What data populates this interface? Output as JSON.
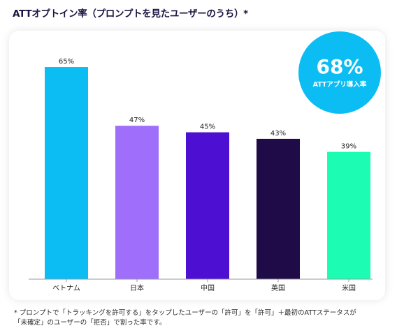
{
  "title": "ATTオプトイン率（プロンプトを見たユーザーのうち）*",
  "badge": {
    "value": "68%",
    "label": "ATTアプリ導入率",
    "color": "#0cbdf4"
  },
  "chart_data": {
    "type": "bar",
    "categories": [
      "ベトナム",
      "日本",
      "中国",
      "英国",
      "米国"
    ],
    "values": [
      65,
      47,
      45,
      43,
      39
    ],
    "value_suffix": "%",
    "colors": [
      "#0cbdf4",
      "#9f6efb",
      "#4d0fd1",
      "#1f0b48",
      "#1cfcb2"
    ],
    "ylim": [
      0,
      68
    ],
    "grid": false,
    "title": "ATTオプトイン率（プロンプトを見たユーザーのうち）*"
  },
  "footnote": {
    "line1": "* プロンプトで「トラッキングを許可する」をタップしたユーザーの「許可」を「許可」＋最初のATTステータスが",
    "line2": "「未確定」のユーザーの「拒否」で割った率です。"
  }
}
